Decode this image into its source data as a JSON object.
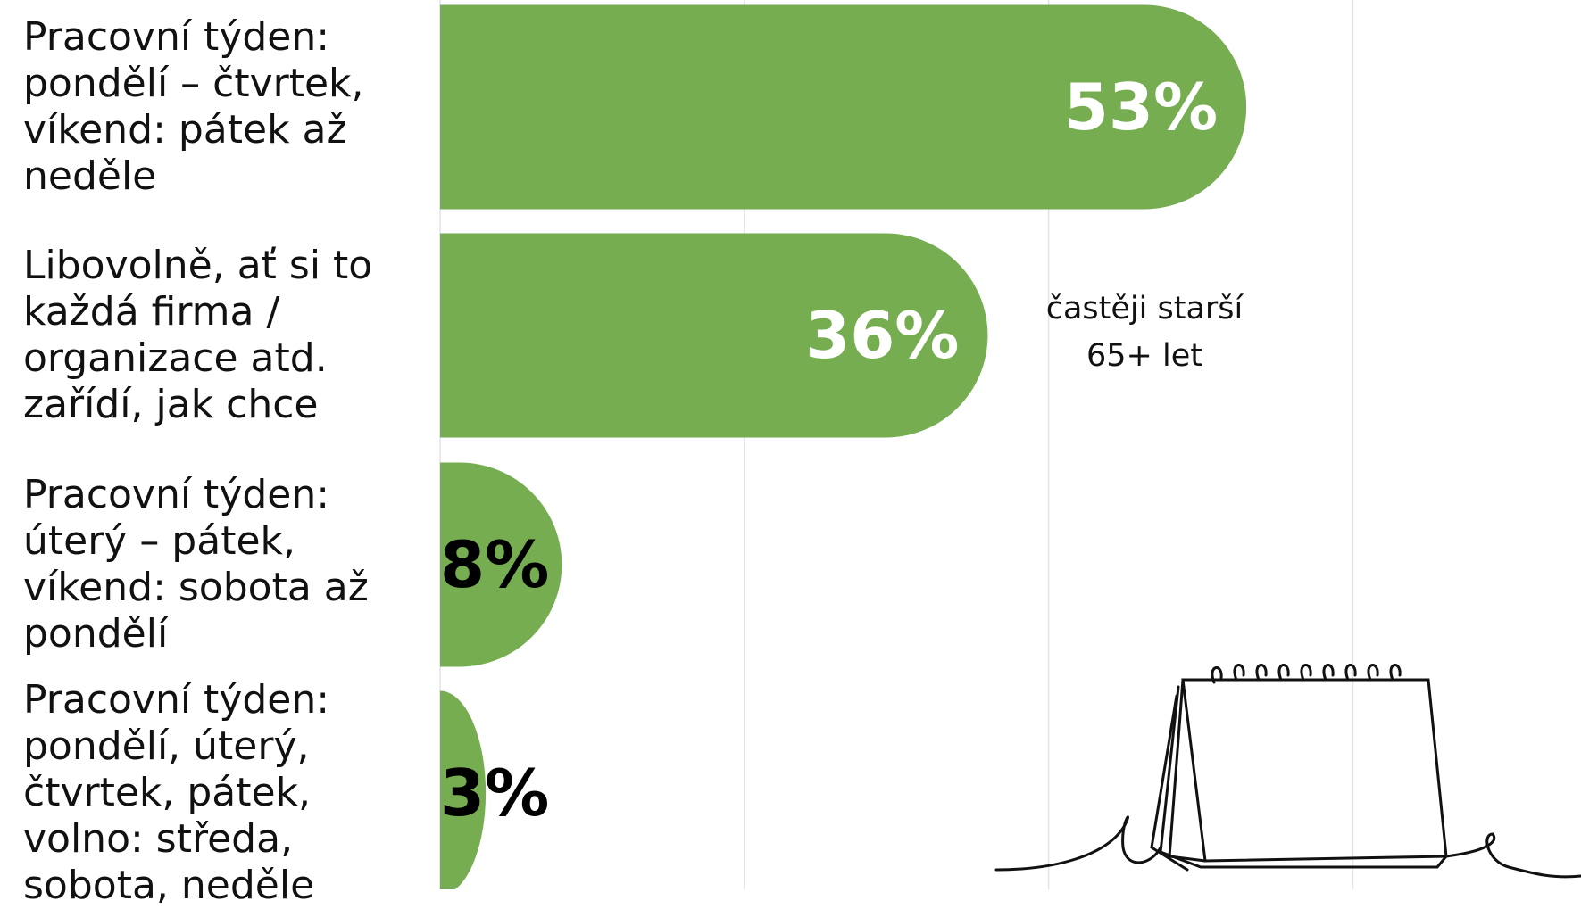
{
  "chart_data": {
    "type": "hbar",
    "categories": [
      "Pracovní týden:\npondělí – čtvrtek,\nvíkend: pátek až\nneděle",
      "Libovolně, ať si to\nkaždá firma /\norganizace atd.\nzařídí, jak chce",
      "Pracovní týden:\núterý – pátek,\nvíkend: sobota až\npondělí",
      "Pracovní týden:\npondělí, úterý,\nčtvrtek, pátek,\nvolno: středa,\nsobota, neděle"
    ],
    "values": [
      53,
      36,
      8,
      3
    ],
    "value_labels": [
      "53%",
      "36%",
      "8%",
      "3%"
    ],
    "color": "#76ad50",
    "xlim": [
      0,
      75
    ],
    "xticks": [
      0,
      20,
      40,
      60
    ],
    "grid": true,
    "annotation": "častěji starší\n65+ let"
  }
}
